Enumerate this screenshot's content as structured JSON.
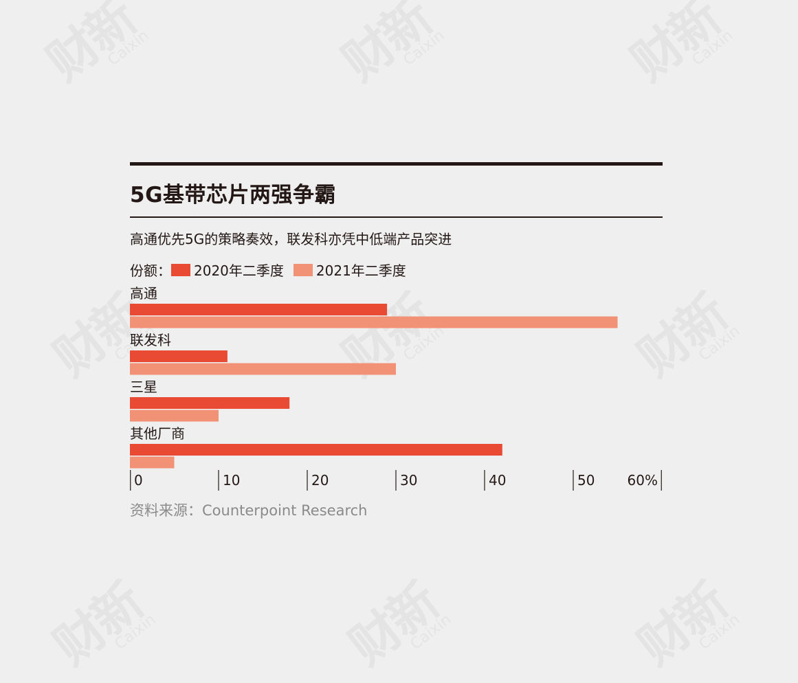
{
  "watermark": {
    "cn": "财新",
    "en": "Caixin"
  },
  "title": "5G基带芯片两强争霸",
  "subtitle": "高通优先5G的策略奏效，联发科亦凭中低端产品突进",
  "legend_prefix": "份额：",
  "source": "资料来源：Counterpoint Research",
  "colors": {
    "series_2020": "#e84a33",
    "series_2021": "#f19175",
    "text": "#231815",
    "background": "#efefef"
  },
  "chart_data": {
    "type": "bar",
    "orientation": "horizontal",
    "categories": [
      "高通",
      "联发科",
      "三星",
      "其他厂商"
    ],
    "series": [
      {
        "name": "2020年二季度",
        "values": [
          29,
          11,
          18,
          42
        ]
      },
      {
        "name": "2021年二季度",
        "values": [
          55,
          30,
          10,
          5
        ]
      }
    ],
    "xlim": [
      0,
      60
    ],
    "xticks": [
      0,
      10,
      20,
      30,
      40,
      50,
      60
    ],
    "xtick_labels": [
      "0",
      "10",
      "20",
      "30",
      "40",
      "50",
      "60%"
    ],
    "grid": false,
    "legend_position": "top-left"
  }
}
